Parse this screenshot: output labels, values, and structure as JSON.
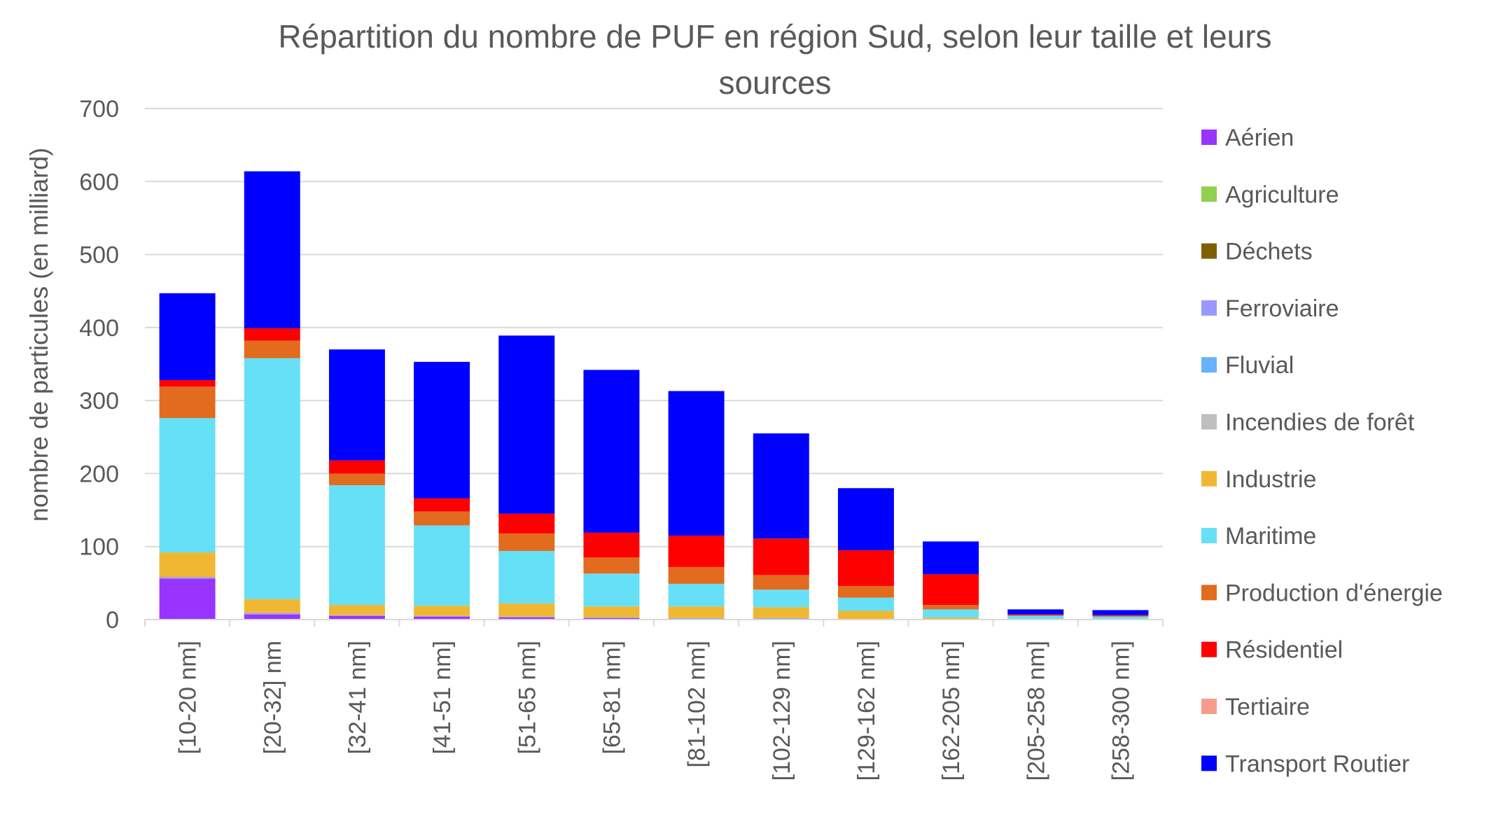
{
  "chart_data": {
    "type": "bar",
    "stacked": true,
    "title_lines": [
      "Répartition du nombre de PUF en région Sud, selon leur taille et leurs",
      "sources"
    ],
    "xlabel": "",
    "ylabel": "nombre de particules (en milliard)",
    "ylim": [
      0,
      700
    ],
    "yticks": [
      0,
      100,
      200,
      300,
      400,
      500,
      600,
      700
    ],
    "grid": true,
    "legend_position": "right",
    "categories": [
      "[10-20 nm]",
      "[20-32] nm",
      "[32-41 nm]",
      "[41-51 nm]",
      "[51-65 nm]",
      "[65-81 nm]",
      "[81-102 nm]",
      "[102-129 nm]",
      "[129-162 nm]",
      "[162-205 nm]",
      "[205-258 nm]",
      "[258-300 nm]"
    ],
    "series": [
      {
        "name": "Aérien",
        "color": "#9933FF",
        "values": [
          56,
          7,
          5,
          4,
          3,
          2,
          1,
          1,
          0,
          0,
          0,
          0
        ]
      },
      {
        "name": "Agriculture",
        "color": "#92D050",
        "values": [
          0,
          0,
          0,
          0,
          0,
          0,
          0,
          0,
          0,
          0,
          0,
          0
        ]
      },
      {
        "name": "Déchets",
        "color": "#7F6000",
        "values": [
          0,
          0,
          0,
          0,
          0,
          0,
          0,
          0,
          0,
          0,
          0,
          0
        ]
      },
      {
        "name": "Ferroviaire",
        "color": "#9999FF",
        "values": [
          2,
          2,
          1,
          1,
          1,
          1,
          1,
          1,
          1,
          0,
          0,
          0
        ]
      },
      {
        "name": "Fluvial",
        "color": "#66B2FF",
        "values": [
          0,
          0,
          0,
          0,
          0,
          0,
          0,
          0,
          0,
          0,
          0,
          0
        ]
      },
      {
        "name": "Incendies de forêt",
        "color": "#BFBFBF",
        "values": [
          0,
          0,
          0,
          0,
          0,
          0,
          0,
          0,
          0,
          0,
          0,
          0
        ]
      },
      {
        "name": "Industrie",
        "color": "#F0B732",
        "values": [
          34,
          19,
          14,
          14,
          18,
          15,
          16,
          15,
          11,
          3,
          1,
          0
        ]
      },
      {
        "name": "Maritime",
        "color": "#66E0F7",
        "values": [
          184,
          330,
          164,
          110,
          72,
          45,
          31,
          24,
          18,
          11,
          4,
          4
        ]
      },
      {
        "name": "Production d'énergie",
        "color": "#E26B1E",
        "values": [
          43,
          24,
          16,
          19,
          24,
          22,
          23,
          20,
          16,
          6,
          1,
          1
        ]
      },
      {
        "name": "Résidentiel",
        "color": "#FF0000",
        "values": [
          9,
          17,
          18,
          18,
          27,
          34,
          43,
          50,
          49,
          42,
          1,
          1
        ]
      },
      {
        "name": "Tertiaire",
        "color": "#F79C8C",
        "values": [
          0,
          0,
          0,
          0,
          0,
          0,
          0,
          0,
          0,
          0,
          0,
          0
        ]
      },
      {
        "name": "Transport Routier",
        "color": "#0000FF",
        "values": [
          119,
          215,
          152,
          187,
          244,
          223,
          198,
          144,
          85,
          45,
          7,
          7
        ]
      }
    ]
  }
}
